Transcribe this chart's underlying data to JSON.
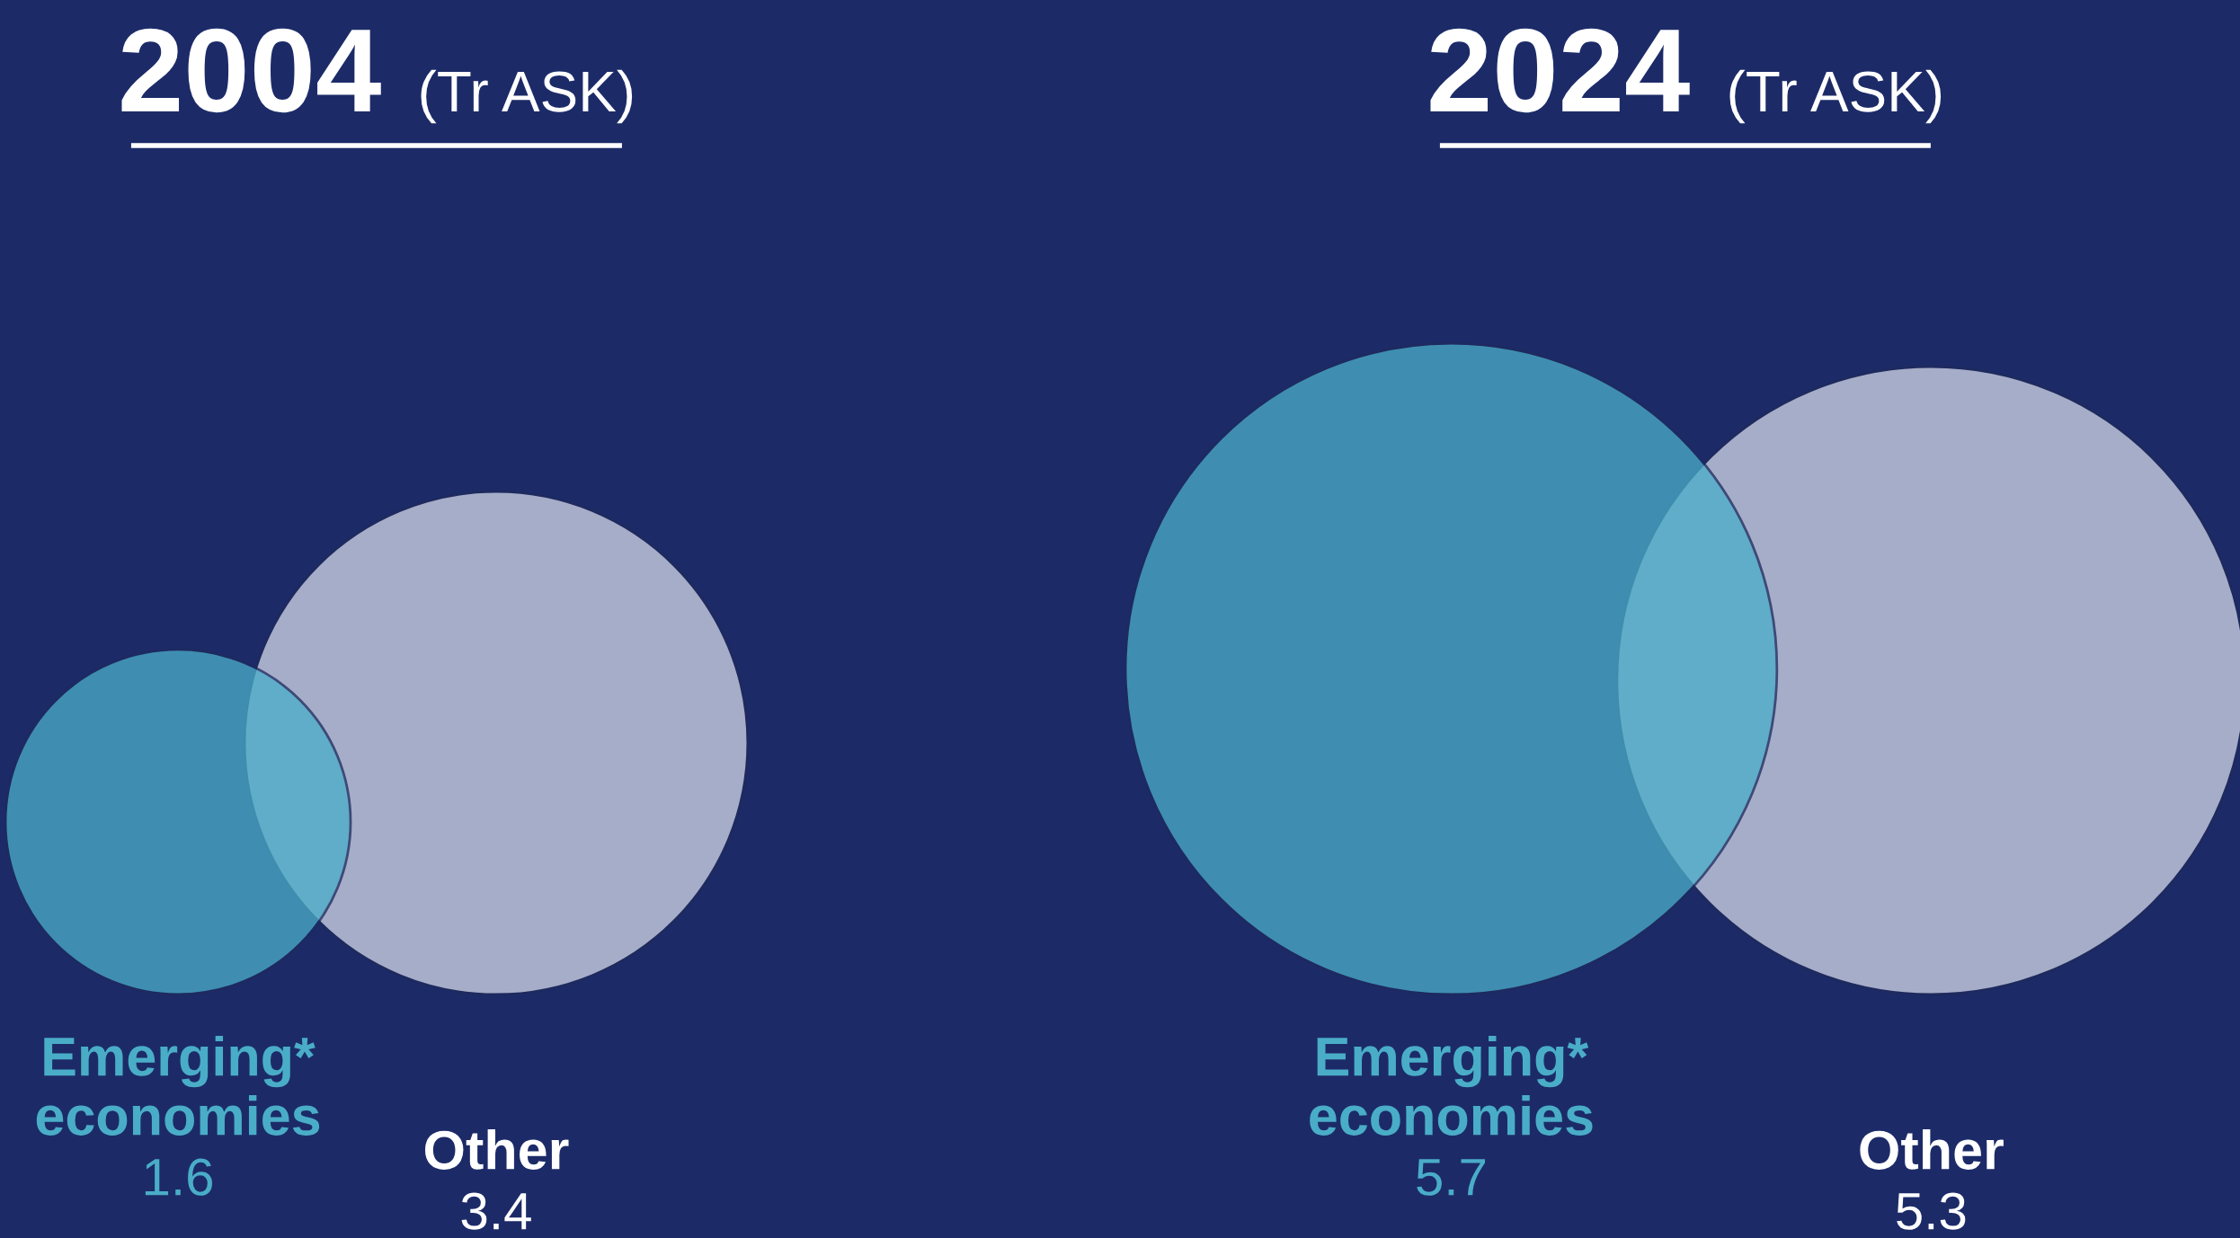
{
  "chart_data": [
    {
      "type": "other",
      "title": "2004",
      "subtitle": "(Tr ASK)",
      "categories": [
        "Emerging*\neconomies",
        "Other"
      ],
      "values": [
        1.6,
        3.4
      ],
      "colors": [
        "#4aadc8",
        "#a6adc8"
      ],
      "data_labels": true
    },
    {
      "type": "other",
      "title": "2024",
      "subtitle": "(Tr ASK)",
      "categories": [
        "Emerging*\neconomies",
        "Other"
      ],
      "values": [
        5.7,
        5.3
      ],
      "colors": [
        "#4aadc8",
        "#a6adc8"
      ],
      "data_labels": true
    }
  ]
}
